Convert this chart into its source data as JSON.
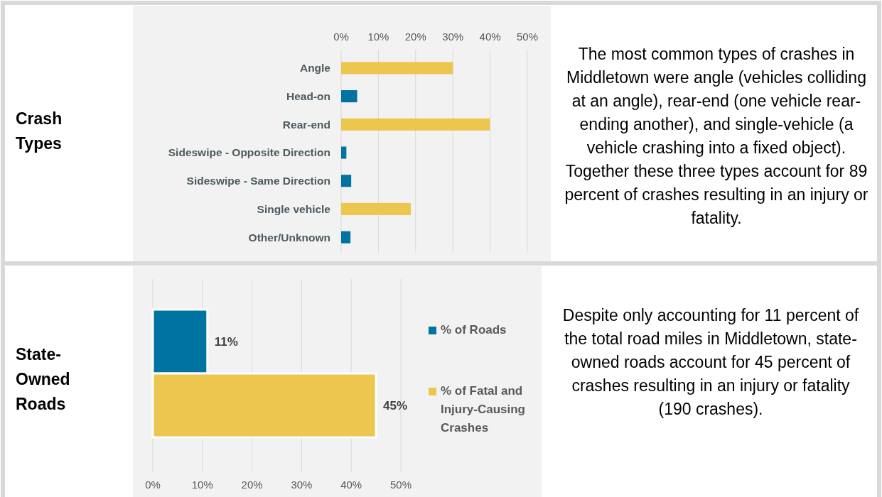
{
  "chart_data": [
    {
      "type": "other",
      "title": "Crash Types"
    },
    {
      "type": "bar",
      "orientation": "horizontal",
      "categories": [
        "Angle",
        "Head-on",
        "Rear-end",
        "Sideswipe - Opposite Direction",
        "Sideswipe - Same Direction",
        "Single vehicle",
        "Other/Unknown"
      ],
      "values": [
        30,
        4.3,
        40,
        1.4,
        2.7,
        18.7,
        2.5
      ],
      "colors": [
        "#ecc64f",
        "#0073a0",
        "#ecc64f",
        "#0073a0",
        "#0073a0",
        "#ecc64f",
        "#0073a0"
      ],
      "xlim": [
        0,
        50
      ],
      "xticks": [
        {
          "value": 0,
          "label": "0%"
        },
        {
          "value": 10,
          "label": "10%"
        },
        {
          "value": 20,
          "label": "20%"
        },
        {
          "value": 30,
          "label": "30%"
        },
        {
          "value": 40,
          "label": "40%"
        },
        {
          "value": 50,
          "label": "50%"
        }
      ],
      "grid": "x"
    },
    {
      "type": "other",
      "annotations": [
        "The most common types of crashes in Middletown were angle (vehicles colliding at an angle), rear-end (one vehicle rear-ending another), and single-vehicle (a vehicle crashing into a fixed object).",
        "Together these three types account for 89 percent of crashes resulting in an injury or fatality."
      ]
    },
    {
      "type": "other",
      "title": "State-Owned Roads"
    },
    {
      "type": "bar",
      "orientation": "horizontal",
      "categories": [
        null
      ],
      "series": [
        {
          "name": "% of Roads",
          "color": "#0073a0",
          "values": [
            11
          ],
          "value_labels": [
            "11%"
          ]
        },
        {
          "name": "% of Fatal and Injury-Causing Crashes",
          "color": "#ecc64f",
          "values": [
            45
          ],
          "value_labels": [
            "45%"
          ]
        }
      ],
      "xlim": [
        0,
        50
      ],
      "xticks": [
        {
          "value": 0,
          "label": "0%"
        },
        {
          "value": 10,
          "label": "10%"
        },
        {
          "value": 20,
          "label": "20%"
        },
        {
          "value": 30,
          "label": "30%"
        },
        {
          "value": 40,
          "label": "40%"
        },
        {
          "value": 50,
          "label": "50%"
        }
      ],
      "grid": "x",
      "legend": "right"
    },
    {
      "type": "other",
      "annotations": [
        "Despite only accounting for 11 percent of the total road miles in Middletown, state-owned roads account for 45 percent of crashes resulting in an injury or fatality (190 crashes)."
      ]
    }
  ]
}
